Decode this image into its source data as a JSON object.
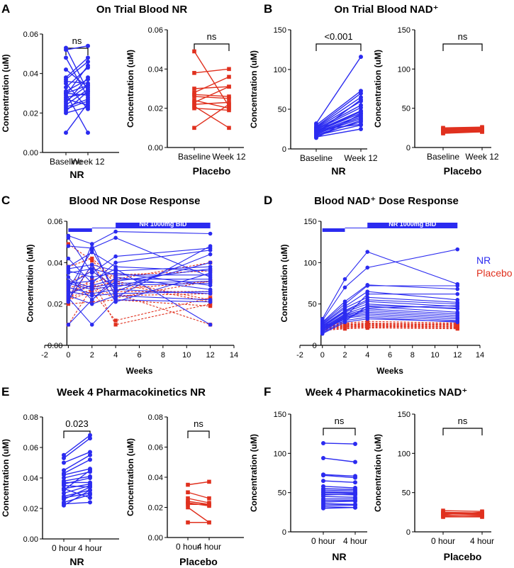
{
  "colors": {
    "nr": "#2b2bf0",
    "placebo": "#e0301e",
    "axis": "#000000",
    "dose_bar": "#2b2bf0"
  },
  "figure": {
    "panel_labels": [
      "A",
      "B",
      "C",
      "D",
      "E",
      "F"
    ],
    "titles": {
      "A": "On Trial Blood NR",
      "B": "On Trial Blood NAD⁺",
      "C": "Blood NR Dose Response",
      "D": "Blood NAD⁺ Dose Response",
      "E": "Week 4 Pharmacokinetics NR",
      "F": "Week 4 Pharmacokinetics NAD⁺"
    },
    "ylabel": "Concentration (uM)",
    "xlabel_time": "Weeks",
    "dose_label": "NR 1000mg BID",
    "legend": [
      "NR",
      "Placebo"
    ]
  },
  "chart_data": [
    {
      "id": "A-NR",
      "type": "line",
      "group": "NR",
      "color": "nr",
      "categories": [
        "Baseline",
        "Week 12"
      ],
      "ylim": [
        0,
        0.06
      ],
      "yticks": [
        "0.00",
        "0.02",
        "0.04",
        "0.06"
      ],
      "stat": "ns",
      "series": [
        [
          0.053,
          0.031
        ],
        [
          0.052,
          0.054
        ],
        [
          0.048,
          0.028
        ],
        [
          0.042,
          0.033
        ],
        [
          0.038,
          0.048
        ],
        [
          0.037,
          0.046
        ],
        [
          0.036,
          0.035
        ],
        [
          0.035,
          0.022
        ],
        [
          0.033,
          0.043
        ],
        [
          0.031,
          0.037
        ],
        [
          0.03,
          0.034
        ],
        [
          0.03,
          0.029
        ],
        [
          0.029,
          0.044
        ],
        [
          0.028,
          0.03
        ],
        [
          0.027,
          0.024
        ],
        [
          0.026,
          0.034
        ],
        [
          0.025,
          0.038
        ],
        [
          0.024,
          0.032
        ],
        [
          0.023,
          0.027
        ],
        [
          0.022,
          0.026
        ],
        [
          0.021,
          0.031
        ],
        [
          0.02,
          0.023
        ],
        [
          0.01,
          0.025
        ],
        [
          0.03,
          0.01
        ]
      ]
    },
    {
      "id": "A-Placebo",
      "type": "line",
      "group": "Placebo",
      "color": "placebo",
      "categories": [
        "Baseline",
        "Week 12"
      ],
      "ylim": [
        0,
        0.06
      ],
      "yticks": [
        "0.00",
        "0.02",
        "0.04",
        "0.06"
      ],
      "stat": "ns",
      "series": [
        [
          0.049,
          0.021
        ],
        [
          0.038,
          0.04
        ],
        [
          0.03,
          0.031
        ],
        [
          0.028,
          0.036
        ],
        [
          0.027,
          0.026
        ],
        [
          0.026,
          0.025
        ],
        [
          0.024,
          0.02
        ],
        [
          0.023,
          0.031
        ],
        [
          0.022,
          0.023
        ],
        [
          0.021,
          0.01
        ],
        [
          0.02,
          0.019
        ],
        [
          0.01,
          0.022
        ]
      ]
    },
    {
      "id": "B-NR",
      "type": "line",
      "group": "NR",
      "color": "nr",
      "categories": [
        "Baseline",
        "Week 12"
      ],
      "ylim": [
        0,
        150
      ],
      "yticks": [
        "0",
        "50",
        "100",
        "150"
      ],
      "stat": "<0.001",
      "series": [
        [
          32,
          116
        ],
        [
          30,
          73
        ],
        [
          28,
          70
        ],
        [
          27,
          65
        ],
        [
          26,
          60
        ],
        [
          25,
          55
        ],
        [
          24,
          52
        ],
        [
          23,
          48
        ],
        [
          22,
          45
        ],
        [
          21,
          42
        ],
        [
          20,
          40
        ],
        [
          19,
          38
        ],
        [
          18,
          34
        ],
        [
          17,
          30
        ],
        [
          16,
          36
        ],
        [
          15,
          25
        ],
        [
          14,
          44
        ],
        [
          22,
          47
        ],
        [
          24,
          31
        ],
        [
          20,
          62
        ]
      ]
    },
    {
      "id": "B-Placebo",
      "type": "line",
      "group": "Placebo",
      "color": "placebo",
      "categories": [
        "Baseline",
        "Week 12"
      ],
      "ylim": [
        0,
        150
      ],
      "yticks": [
        "0",
        "50",
        "100",
        "150"
      ],
      "stat": "ns",
      "series": [
        [
          25,
          26
        ],
        [
          24,
          25
        ],
        [
          23,
          24
        ],
        [
          22,
          23
        ],
        [
          21,
          22
        ],
        [
          20,
          21
        ],
        [
          19,
          20
        ],
        [
          18,
          20
        ],
        [
          22,
          24
        ],
        [
          20,
          22
        ]
      ]
    },
    {
      "id": "C",
      "type": "line",
      "xlabel": "Weeks",
      "x": [
        0,
        2,
        4,
        12
      ],
      "xlim": [
        -2,
        14
      ],
      "xticks": [
        "-2",
        "0",
        "2",
        "4",
        "6",
        "8",
        "10",
        "12",
        "14"
      ],
      "ylim": [
        0,
        0.06
      ],
      "yticks": [
        "0.00",
        "0.02",
        "0.04",
        "0.06"
      ],
      "dose_steps": [
        {
          "from": 0,
          "to": 2,
          "level": 1
        },
        {
          "from": 2,
          "to": 4,
          "level": 2
        },
        {
          "from": 4,
          "to": 12,
          "level": 3
        }
      ],
      "series_nr": [
        [
          0.053,
          0.049,
          0.055,
          0.054
        ],
        [
          0.052,
          0.035,
          0.043,
          0.047
        ],
        [
          0.048,
          0.047,
          0.052,
          0.033
        ],
        [
          0.042,
          0.03,
          0.04,
          0.046
        ],
        [
          0.038,
          0.045,
          0.038,
          0.036
        ],
        [
          0.037,
          0.039,
          0.036,
          0.038
        ],
        [
          0.036,
          0.033,
          0.035,
          0.029
        ],
        [
          0.035,
          0.037,
          0.034,
          0.034
        ],
        [
          0.033,
          0.022,
          0.031,
          0.037
        ],
        [
          0.031,
          0.028,
          0.03,
          0.031
        ],
        [
          0.03,
          0.027,
          0.029,
          0.03
        ],
        [
          0.029,
          0.036,
          0.028,
          0.04
        ],
        [
          0.028,
          0.025,
          0.027,
          0.025
        ],
        [
          0.027,
          0.046,
          0.026,
          0.044
        ],
        [
          0.026,
          0.024,
          0.025,
          0.026
        ],
        [
          0.025,
          0.029,
          0.032,
          0.032
        ],
        [
          0.024,
          0.02,
          0.024,
          0.022
        ],
        [
          0.023,
          0.01,
          0.022,
          0.021
        ],
        [
          0.022,
          0.039,
          0.021,
          0.035
        ],
        [
          0.021,
          0.049,
          0.023,
          0.048
        ],
        [
          0.01,
          0.022,
          0.033,
          0.027
        ],
        [
          0.03,
          0.031,
          0.037,
          0.01
        ]
      ],
      "series_placebo": [
        [
          0.049,
          0.041,
          0.03,
          0.021
        ],
        [
          0.038,
          0.042,
          0.032,
          0.04
        ],
        [
          0.03,
          0.036,
          0.027,
          0.031
        ],
        [
          0.028,
          0.03,
          0.034,
          0.036
        ],
        [
          0.027,
          0.029,
          0.026,
          0.026
        ],
        [
          0.026,
          0.028,
          0.024,
          0.025
        ],
        [
          0.024,
          0.032,
          0.01,
          0.02
        ],
        [
          0.023,
          0.027,
          0.023,
          0.031
        ],
        [
          0.022,
          0.026,
          0.012,
          0.023
        ],
        [
          0.021,
          0.039,
          0.025,
          0.01
        ],
        [
          0.02,
          0.021,
          0.022,
          0.019
        ],
        [
          0.01,
          0.028,
          0.031,
          0.022
        ]
      ]
    },
    {
      "id": "D",
      "type": "line",
      "xlabel": "Weeks",
      "x": [
        0,
        2,
        4,
        12
      ],
      "xlim": [
        -2,
        14
      ],
      "xticks": [
        "-2",
        "0",
        "2",
        "4",
        "6",
        "8",
        "10",
        "12",
        "14"
      ],
      "ylim": [
        0,
        150
      ],
      "yticks": [
        "0",
        "50",
        "100",
        "150"
      ],
      "dose_steps": [
        {
          "from": 0,
          "to": 2,
          "level": 1
        },
        {
          "from": 2,
          "to": 4,
          "level": 2
        },
        {
          "from": 4,
          "to": 12,
          "level": 3
        }
      ],
      "series_nr": [
        [
          32,
          80,
          113,
          74
        ],
        [
          30,
          70,
          94,
          116
        ],
        [
          28,
          53,
          73,
          68
        ],
        [
          27,
          50,
          72,
          72
        ],
        [
          26,
          47,
          65,
          55
        ],
        [
          25,
          45,
          58,
          52
        ],
        [
          24,
          42,
          55,
          50
        ],
        [
          23,
          41,
          53,
          47
        ],
        [
          22,
          40,
          50,
          44
        ],
        [
          21,
          38,
          47,
          40
        ],
        [
          20,
          37,
          44,
          38
        ],
        [
          19,
          36,
          42,
          36
        ],
        [
          18,
          35,
          40,
          34
        ],
        [
          17,
          34,
          38,
          32
        ],
        [
          16,
          33,
          36,
          30
        ],
        [
          15,
          30,
          34,
          28
        ],
        [
          14,
          28,
          32,
          29
        ],
        [
          22,
          31,
          45,
          48
        ],
        [
          24,
          29,
          48,
          45
        ],
        [
          20,
          34,
          62,
          62
        ]
      ],
      "series_placebo": [
        [
          25,
          27,
          29,
          27
        ],
        [
          24,
          26,
          27,
          26
        ],
        [
          23,
          25,
          26,
          25
        ],
        [
          22,
          24,
          25,
          24
        ],
        [
          21,
          23,
          24,
          23
        ],
        [
          20,
          22,
          23,
          22
        ],
        [
          19,
          21,
          22,
          21
        ],
        [
          18,
          20,
          21,
          20
        ],
        [
          22,
          24,
          26,
          25
        ],
        [
          20,
          22,
          24,
          22
        ]
      ]
    },
    {
      "id": "E-NR",
      "type": "line",
      "group": "NR",
      "color": "nr",
      "categories": [
        "0 hour",
        "4 hour"
      ],
      "ylim": [
        0,
        0.08
      ],
      "yticks": [
        "0.00",
        "0.02",
        "0.04",
        "0.06",
        "0.08"
      ],
      "stat": "0.023",
      "series": [
        [
          0.055,
          0.068
        ],
        [
          0.053,
          0.066
        ],
        [
          0.05,
          0.057
        ],
        [
          0.045,
          0.055
        ],
        [
          0.043,
          0.052
        ],
        [
          0.042,
          0.046
        ],
        [
          0.04,
          0.044
        ],
        [
          0.038,
          0.041
        ],
        [
          0.037,
          0.037
        ],
        [
          0.036,
          0.04
        ],
        [
          0.035,
          0.034
        ],
        [
          0.033,
          0.036
        ],
        [
          0.032,
          0.045
        ],
        [
          0.03,
          0.035
        ],
        [
          0.028,
          0.032
        ],
        [
          0.027,
          0.03
        ],
        [
          0.026,
          0.034
        ],
        [
          0.024,
          0.029
        ],
        [
          0.023,
          0.024
        ],
        [
          0.022,
          0.032
        ],
        [
          0.033,
          0.027
        ]
      ]
    },
    {
      "id": "E-Placebo",
      "type": "line",
      "group": "Placebo",
      "color": "placebo",
      "categories": [
        "0 hour",
        "4 hour"
      ],
      "ylim": [
        0,
        0.08
      ],
      "yticks": [
        "0.00",
        "0.02",
        "0.04",
        "0.06",
        "0.08"
      ],
      "stat": "ns",
      "series": [
        [
          0.035,
          0.037
        ],
        [
          0.03,
          0.026
        ],
        [
          0.026,
          0.023
        ],
        [
          0.024,
          0.022
        ],
        [
          0.023,
          0.021
        ],
        [
          0.022,
          0.022
        ],
        [
          0.02,
          0.01
        ],
        [
          0.01,
          0.01
        ]
      ]
    },
    {
      "id": "F-NR",
      "type": "line",
      "group": "NR",
      "color": "nr",
      "categories": [
        "0 hour",
        "4 hour"
      ],
      "ylim": [
        0,
        150
      ],
      "yticks": [
        "0",
        "50",
        "100",
        "150"
      ],
      "stat": "ns",
      "series": [
        [
          113,
          112
        ],
        [
          94,
          89
        ],
        [
          73,
          71
        ],
        [
          72,
          69
        ],
        [
          65,
          63
        ],
        [
          58,
          56
        ],
        [
          55,
          54
        ],
        [
          53,
          52
        ],
        [
          51,
          50
        ],
        [
          50,
          49
        ],
        [
          48,
          47
        ],
        [
          47,
          48
        ],
        [
          45,
          44
        ],
        [
          42,
          42
        ],
        [
          40,
          40
        ],
        [
          38,
          39
        ],
        [
          36,
          35
        ],
        [
          34,
          34
        ],
        [
          32,
          31
        ],
        [
          30,
          31
        ]
      ]
    },
    {
      "id": "F-Placebo",
      "type": "line",
      "group": "Placebo",
      "color": "placebo",
      "categories": [
        "0 hour",
        "4 hour"
      ],
      "ylim": [
        0,
        150
      ],
      "yticks": [
        "0",
        "50",
        "100",
        "150"
      ],
      "stat": "ns",
      "series": [
        [
          27,
          26
        ],
        [
          25,
          24
        ],
        [
          24,
          23
        ],
        [
          23,
          22
        ],
        [
          22,
          25
        ],
        [
          21,
          20
        ],
        [
          20,
          21
        ],
        [
          19,
          19
        ]
      ]
    }
  ]
}
